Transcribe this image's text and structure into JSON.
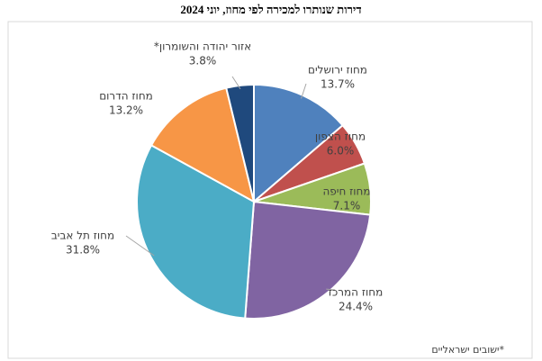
{
  "chart_data": {
    "type": "pie",
    "title": "דירות שנותרו למכירה לפי מחוז, יוני 2024",
    "note": "*ישובים ישראליים",
    "categories": [
      "מחוז ירושלים",
      "מחוז הצפון",
      "מחוז חיפה",
      "מחוז המרכז",
      "מחוז תל אביב",
      "מחוז הדרום",
      "אזור יהודה והשומרון*"
    ],
    "values": [
      13.7,
      6.0,
      7.1,
      24.4,
      31.8,
      13.2,
      3.8
    ],
    "value_labels": [
      "13.7%",
      "6.0%",
      "7.1%",
      "24.4%",
      "31.8%",
      "13.2%",
      "3.8%"
    ],
    "colors": [
      "#4f81bd",
      "#c0504d",
      "#9bbb59",
      "#8064a2",
      "#4bacc6",
      "#f79646",
      "#1f497d"
    ]
  }
}
